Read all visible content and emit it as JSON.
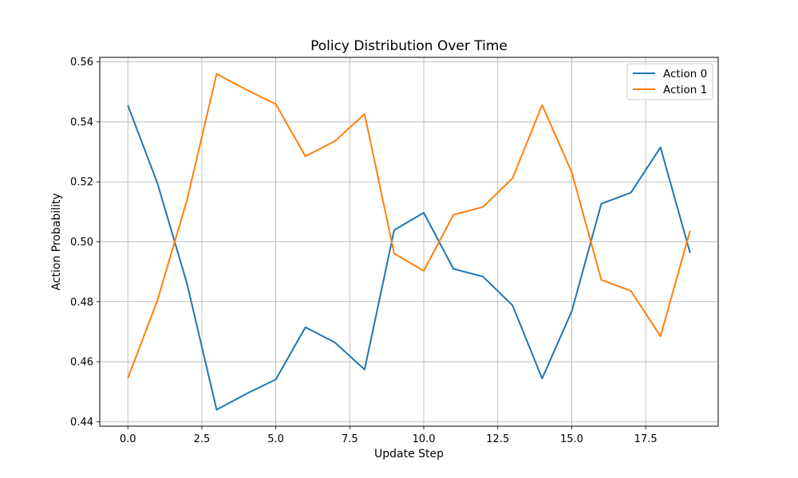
{
  "chart_data": {
    "type": "line",
    "title": "Policy Distribution Over Time",
    "xlabel": "Update Step",
    "ylabel": "Action Probability",
    "xlim": [
      -0.95,
      19.95
    ],
    "ylim": [
      0.4385,
      0.5615
    ],
    "xticks": [
      0.0,
      2.5,
      5.0,
      7.5,
      10.0,
      12.5,
      15.0,
      17.5
    ],
    "xtick_labels": [
      "0.0",
      "2.5",
      "5.0",
      "7.5",
      "10.0",
      "12.5",
      "15.0",
      "17.5"
    ],
    "yticks": [
      0.44,
      0.46,
      0.48,
      0.5,
      0.52,
      0.54,
      0.56
    ],
    "ytick_labels": [
      "0.44",
      "0.46",
      "0.48",
      "0.50",
      "0.52",
      "0.54",
      "0.56"
    ],
    "grid": true,
    "legend_position": "top-right",
    "x": [
      0,
      1,
      2,
      3,
      4,
      5,
      6,
      7,
      8,
      9,
      10,
      11,
      12,
      13,
      14,
      15,
      16,
      17,
      18,
      19
    ],
    "series": [
      {
        "name": "Action 0",
        "color": "#1f77b4",
        "values": [
          0.5455,
          0.5195,
          0.486,
          0.444,
          0.4493,
          0.4541,
          0.4715,
          0.4664,
          0.4574,
          0.5039,
          0.5097,
          0.491,
          0.4884,
          0.4788,
          0.4544,
          0.4768,
          0.5127,
          0.5164,
          0.5315,
          0.4963
        ]
      },
      {
        "name": "Action 1",
        "color": "#ff7f0e",
        "values": [
          0.4545,
          0.4805,
          0.514,
          0.556,
          0.5507,
          0.5459,
          0.5285,
          0.5336,
          0.5426,
          0.4961,
          0.4903,
          0.509,
          0.5116,
          0.5212,
          0.5456,
          0.5232,
          0.4873,
          0.4836,
          0.4685,
          0.5037
        ]
      }
    ]
  }
}
